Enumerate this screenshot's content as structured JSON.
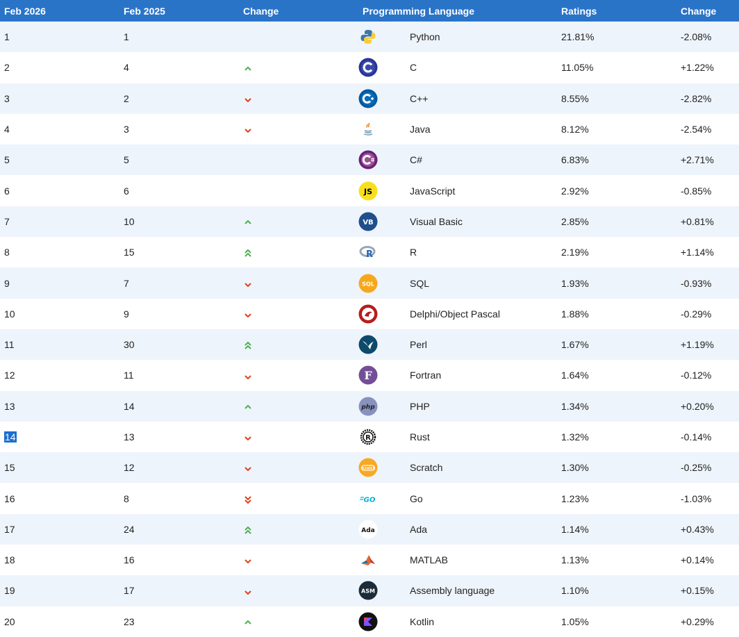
{
  "header": {
    "col_this_year": "Feb 2026",
    "col_last_year": "Feb 2025",
    "col_change": "Change",
    "col_language": "Programming Language",
    "col_ratings": "Ratings",
    "col_change_pct": "Change"
  },
  "rows": [
    {
      "rank": "1",
      "prev": "1",
      "trend": "none",
      "icon": "python-logo-icon",
      "lang": "Python",
      "rating": "21.81%",
      "delta": "-2.08%"
    },
    {
      "rank": "2",
      "prev": "4",
      "trend": "up",
      "icon": "c-logo-icon",
      "lang": "C",
      "rating": "11.05%",
      "delta": "+1.22%"
    },
    {
      "rank": "3",
      "prev": "2",
      "trend": "down",
      "icon": "cpp-logo-icon",
      "lang": "C++",
      "rating": "8.55%",
      "delta": "-2.82%"
    },
    {
      "rank": "4",
      "prev": "3",
      "trend": "down",
      "icon": "java-logo-icon",
      "lang": "Java",
      "rating": "8.12%",
      "delta": "-2.54%"
    },
    {
      "rank": "5",
      "prev": "5",
      "trend": "none",
      "icon": "csharp-logo-icon",
      "lang": "C#",
      "rating": "6.83%",
      "delta": "+2.71%"
    },
    {
      "rank": "6",
      "prev": "6",
      "trend": "none",
      "icon": "javascript-logo-icon",
      "lang": "JavaScript",
      "rating": "2.92%",
      "delta": "-0.85%"
    },
    {
      "rank": "7",
      "prev": "10",
      "trend": "up",
      "icon": "visualbasic-logo-icon",
      "lang": "Visual Basic",
      "rating": "2.85%",
      "delta": "+0.81%"
    },
    {
      "rank": "8",
      "prev": "15",
      "trend": "double-up",
      "icon": "r-logo-icon",
      "lang": "R",
      "rating": "2.19%",
      "delta": "+1.14%"
    },
    {
      "rank": "9",
      "prev": "7",
      "trend": "down",
      "icon": "sql-logo-icon",
      "lang": "SQL",
      "rating": "1.93%",
      "delta": "-0.93%"
    },
    {
      "rank": "10",
      "prev": "9",
      "trend": "down",
      "icon": "delphi-logo-icon",
      "lang": "Delphi/Object Pascal",
      "rating": "1.88%",
      "delta": "-0.29%"
    },
    {
      "rank": "11",
      "prev": "30",
      "trend": "double-up",
      "icon": "perl-logo-icon",
      "lang": "Perl",
      "rating": "1.67%",
      "delta": "+1.19%"
    },
    {
      "rank": "12",
      "prev": "11",
      "trend": "down",
      "icon": "fortran-logo-icon",
      "lang": "Fortran",
      "rating": "1.64%",
      "delta": "-0.12%"
    },
    {
      "rank": "13",
      "prev": "14",
      "trend": "up",
      "icon": "php-logo-icon",
      "lang": "PHP",
      "rating": "1.34%",
      "delta": "+0.20%"
    },
    {
      "rank": "14",
      "prev": "13",
      "trend": "down",
      "icon": "rust-logo-icon",
      "lang": "Rust",
      "rating": "1.32%",
      "delta": "-0.14%",
      "selected": true
    },
    {
      "rank": "15",
      "prev": "12",
      "trend": "down",
      "icon": "scratch-logo-icon",
      "lang": "Scratch",
      "rating": "1.30%",
      "delta": "-0.25%"
    },
    {
      "rank": "16",
      "prev": "8",
      "trend": "double-down",
      "icon": "go-logo-icon",
      "lang": "Go",
      "rating": "1.23%",
      "delta": "-1.03%"
    },
    {
      "rank": "17",
      "prev": "24",
      "trend": "double-up",
      "icon": "ada-logo-icon",
      "lang": "Ada",
      "rating": "1.14%",
      "delta": "+0.43%"
    },
    {
      "rank": "18",
      "prev": "16",
      "trend": "down",
      "icon": "matlab-logo-icon",
      "lang": "MATLAB",
      "rating": "1.13%",
      "delta": "+0.14%"
    },
    {
      "rank": "19",
      "prev": "17",
      "trend": "down",
      "icon": "assembly-logo-icon",
      "lang": "Assembly language",
      "rating": "1.10%",
      "delta": "+0.15%"
    },
    {
      "rank": "20",
      "prev": "23",
      "trend": "up",
      "icon": "kotlin-logo-icon",
      "lang": "Kotlin",
      "rating": "1.05%",
      "delta": "+0.29%"
    }
  ],
  "colors": {
    "header_bg": "#2a74c8",
    "row_alt_bg": "#eef4fb",
    "arrow_up": "#4caf50",
    "arrow_down": "#e0401a",
    "selection": "#1a6fd0"
  }
}
